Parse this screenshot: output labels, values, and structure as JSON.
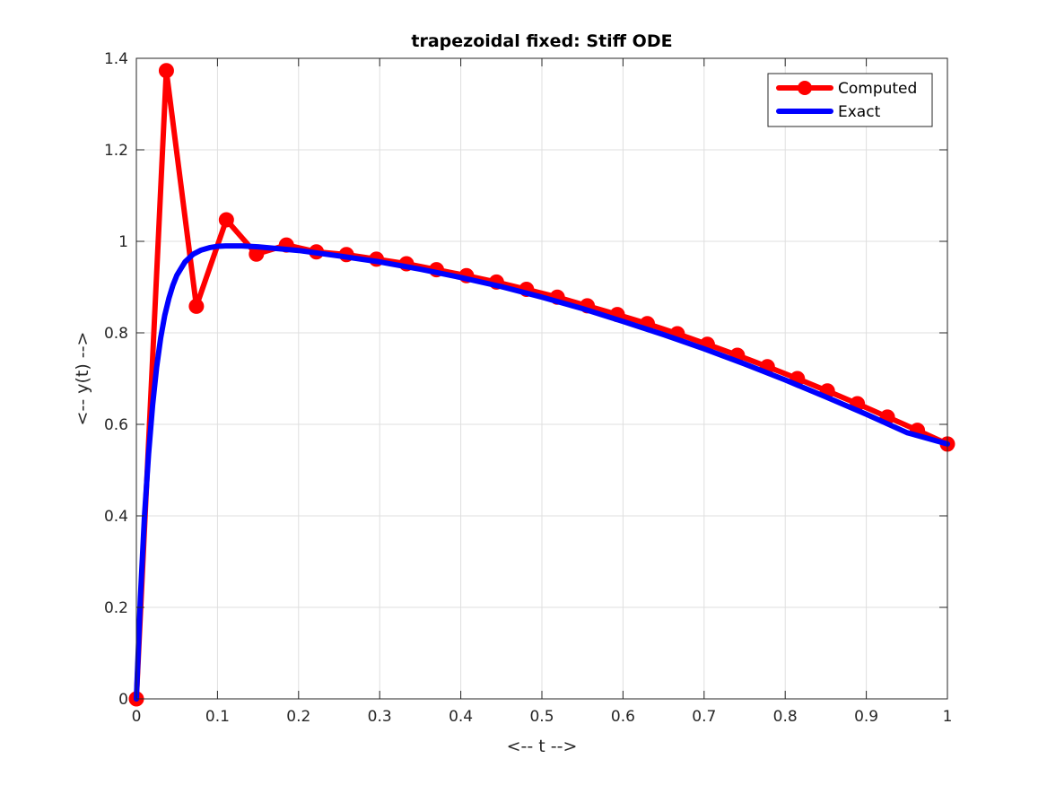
{
  "chart_data": {
    "type": "line",
    "title": "trapezoidal fixed: Stiff ODE",
    "xlabel": "<-- t -->",
    "ylabel": "<-- y(t) -->",
    "xlim": [
      0,
      1
    ],
    "ylim": [
      0,
      1.4
    ],
    "xticks": [
      0,
      0.1,
      0.2,
      0.3,
      0.4,
      0.5,
      0.6,
      0.7,
      0.8,
      0.9,
      1
    ],
    "xtick_labels": [
      "0",
      "0.1",
      "0.2",
      "0.3",
      "0.4",
      "0.5",
      "0.6",
      "0.7",
      "0.8",
      "0.9",
      "1"
    ],
    "yticks": [
      0,
      0.2,
      0.4,
      0.6,
      0.8,
      1,
      1.2,
      1.4
    ],
    "ytick_labels": [
      "0",
      "0.2",
      "0.4",
      "0.6",
      "0.8",
      "1",
      "1.2",
      "1.4"
    ],
    "grid": true,
    "legend_position": "top-right",
    "series": [
      {
        "name": "Computed",
        "color": "#ff0000",
        "marker": "circle",
        "x": [
          0,
          0.037,
          0.074,
          0.111,
          0.148,
          0.185,
          0.222,
          0.259,
          0.296,
          0.333,
          0.37,
          0.407,
          0.444,
          0.481,
          0.519,
          0.556,
          0.593,
          0.63,
          0.667,
          0.704,
          0.741,
          0.778,
          0.815,
          0.852,
          0.889,
          0.926,
          0.963,
          1.0
        ],
        "y": [
          0,
          1.373,
          0.858,
          1.047,
          0.972,
          0.992,
          0.977,
          0.971,
          0.961,
          0.951,
          0.938,
          0.925,
          0.911,
          0.895,
          0.878,
          0.859,
          0.84,
          0.82,
          0.798,
          0.775,
          0.751,
          0.726,
          0.7,
          0.673,
          0.645,
          0.616,
          0.587,
          0.557
        ]
      },
      {
        "name": "Exact",
        "color": "#0000ff",
        "marker": "none",
        "x": [
          0,
          0.005,
          0.01,
          0.015,
          0.02,
          0.025,
          0.03,
          0.035,
          0.04,
          0.045,
          0.05,
          0.06,
          0.07,
          0.08,
          0.09,
          0.1,
          0.11,
          0.12,
          0.13,
          0.15,
          0.2,
          0.25,
          0.3,
          0.35,
          0.4,
          0.45,
          0.5,
          0.55,
          0.6,
          0.65,
          0.7,
          0.75,
          0.8,
          0.85,
          0.9,
          0.95,
          1.0
        ],
        "y": [
          0,
          0.222,
          0.398,
          0.535,
          0.642,
          0.725,
          0.789,
          0.838,
          0.875,
          0.904,
          0.926,
          0.955,
          0.972,
          0.981,
          0.986,
          0.989,
          0.99,
          0.99,
          0.99,
          0.988,
          0.98,
          0.968,
          0.955,
          0.939,
          0.921,
          0.901,
          0.878,
          0.853,
          0.825,
          0.796,
          0.765,
          0.732,
          0.697,
          0.66,
          0.622,
          0.582,
          0.557
        ]
      }
    ]
  }
}
